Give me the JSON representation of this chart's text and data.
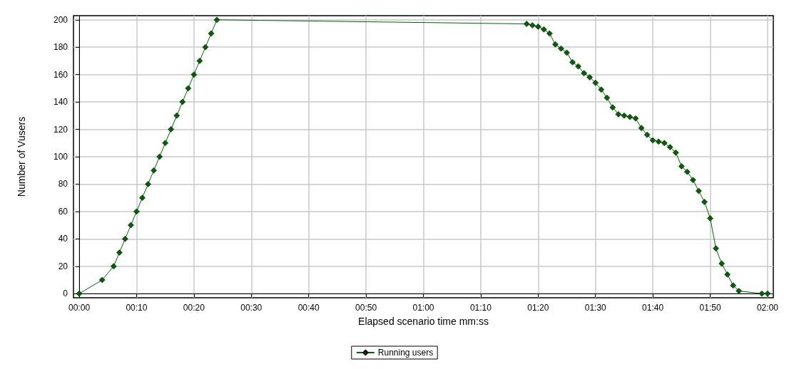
{
  "chart_data": {
    "type": "line",
    "xlabel": "Elapsed scenario time mm:ss",
    "ylabel": "Number of Vusers",
    "x": [
      0,
      4,
      6,
      7,
      8,
      9,
      10,
      11,
      12,
      13,
      14,
      15,
      16,
      17,
      18,
      19,
      20,
      21,
      22,
      23,
      24,
      78,
      79,
      80,
      81,
      82,
      83,
      84,
      85,
      86,
      87,
      88,
      89,
      90,
      91,
      92,
      93,
      94,
      95,
      96,
      97,
      98,
      99,
      100,
      101,
      102,
      103,
      104,
      105,
      106,
      107,
      108,
      109,
      110,
      111,
      112,
      113,
      114,
      115,
      119,
      120
    ],
    "series": [
      {
        "name": "Running users",
        "color": "#006400",
        "values": [
          0,
          10,
          20,
          30,
          40,
          50,
          60,
          70,
          80,
          90,
          100,
          110,
          120,
          130,
          140,
          150,
          160,
          170,
          180,
          190,
          200,
          197,
          196,
          195,
          193,
          190,
          182,
          179,
          176,
          169,
          166,
          161,
          158,
          154,
          149,
          143,
          136,
          131,
          130,
          129,
          128,
          121,
          116,
          112,
          111,
          110,
          107,
          103,
          93,
          89,
          83,
          75,
          67,
          55,
          33,
          22,
          14,
          6,
          2,
          0,
          0
        ]
      }
    ],
    "xlim": [
      -1,
      121
    ],
    "ylim": [
      -3,
      203
    ],
    "xticks": [
      {
        "value": 0,
        "label": "00:00"
      },
      {
        "value": 10,
        "label": "00:10"
      },
      {
        "value": 20,
        "label": "00:20"
      },
      {
        "value": 30,
        "label": "00:30"
      },
      {
        "value": 40,
        "label": "00:40"
      },
      {
        "value": 50,
        "label": "00:50"
      },
      {
        "value": 60,
        "label": "01:00"
      },
      {
        "value": 70,
        "label": "01:10"
      },
      {
        "value": 80,
        "label": "01:20"
      },
      {
        "value": 90,
        "label": "01:30"
      },
      {
        "value": 100,
        "label": "01:40"
      },
      {
        "value": 110,
        "label": "01:50"
      },
      {
        "value": 120,
        "label": "02:00"
      }
    ],
    "yticks": [
      0,
      20,
      40,
      60,
      80,
      100,
      120,
      140,
      160,
      180,
      200
    ],
    "grid": true,
    "legend": "bottom",
    "marker": "diamond",
    "line_style": "solid"
  }
}
